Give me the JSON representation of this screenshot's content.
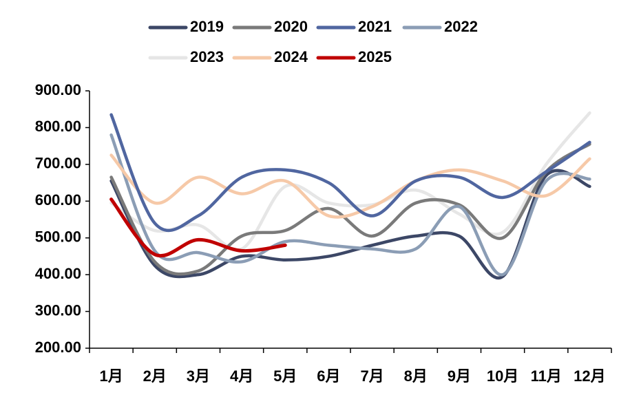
{
  "chart_data": {
    "type": "line",
    "categories": [
      "1月",
      "2月",
      "3月",
      "4月",
      "5月",
      "6月",
      "7月",
      "8月",
      "9月",
      "10月",
      "11月",
      "12月"
    ],
    "series": [
      {
        "name": "2019",
        "color": "#3c4766",
        "values": [
          655,
          425,
          400,
          450,
          440,
          450,
          480,
          505,
          505,
          395,
          670,
          640
        ]
      },
      {
        "name": "2020",
        "color": "#7a7a7a",
        "values": [
          665,
          435,
          410,
          505,
          520,
          580,
          505,
          595,
          590,
          500,
          680,
          755
        ]
      },
      {
        "name": "2021",
        "color": "#5066a0",
        "values": [
          835,
          540,
          560,
          665,
          685,
          650,
          560,
          655,
          665,
          610,
          680,
          760
        ]
      },
      {
        "name": "2022",
        "color": "#8b9db5",
        "values": [
          780,
          465,
          460,
          435,
          490,
          480,
          470,
          470,
          585,
          400,
          655,
          660
        ]
      },
      {
        "name": "2023",
        "color": "#e6e6e6",
        "values": [
          595,
          520,
          535,
          470,
          640,
          595,
          590,
          630,
          565,
          515,
          700,
          840
        ]
      },
      {
        "name": "2024",
        "color": "#f6c9a8",
        "values": [
          725,
          595,
          665,
          620,
          655,
          560,
          585,
          655,
          685,
          655,
          615,
          715
        ]
      },
      {
        "name": "2025",
        "color": "#c00000",
        "values": [
          605,
          455,
          495,
          465,
          480,
          null,
          null,
          null,
          null,
          null,
          null,
          null
        ]
      }
    ],
    "ylim": [
      200,
      900
    ],
    "yticks": [
      {
        "value": 200,
        "label": "200.00"
      },
      {
        "value": 300,
        "label": "300.00"
      },
      {
        "value": 400,
        "label": "400.00"
      },
      {
        "value": 500,
        "label": "500.00"
      },
      {
        "value": 600,
        "label": "600.00"
      },
      {
        "value": 700,
        "label": "700.00"
      },
      {
        "value": 800,
        "label": "800.00"
      },
      {
        "value": 900,
        "label": "900.00"
      }
    ]
  }
}
